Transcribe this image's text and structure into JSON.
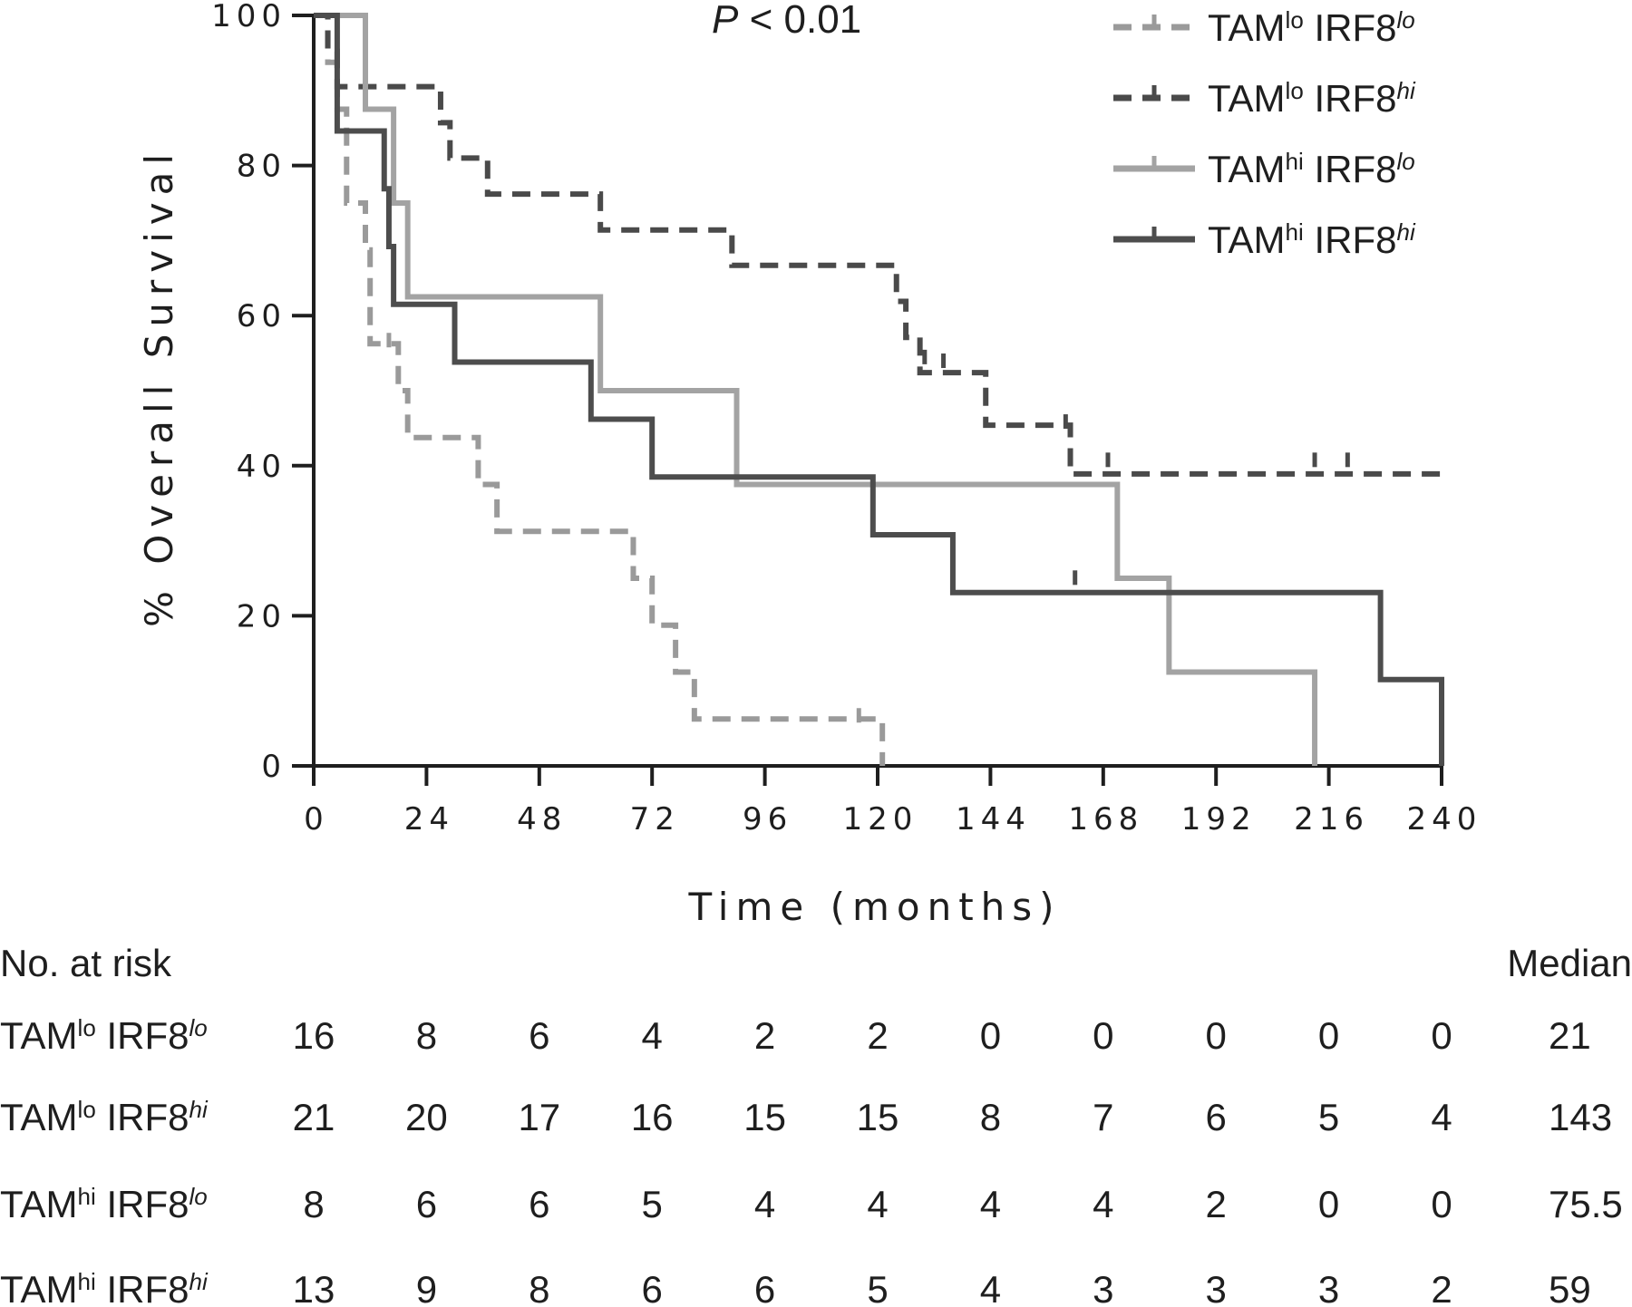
{
  "chart_data": {
    "type": "line",
    "subtype": "kaplan-meier",
    "annotation": "P < 0.01",
    "annotation_p": "P",
    "annotation_rest": " < 0.01",
    "xlabel": "Time (months)",
    "ylabel": "% Overall Survival",
    "xlim": [
      0,
      240
    ],
    "ylim": [
      0,
      100
    ],
    "xticks": [
      "0",
      "24",
      "48",
      "72",
      "96",
      "120",
      "144",
      "168",
      "192",
      "216",
      "240"
    ],
    "yticks": [
      "0",
      "20",
      "40",
      "60",
      "80",
      "100"
    ],
    "x_tick_values": [
      0,
      24,
      48,
      72,
      96,
      120,
      144,
      168,
      192,
      216,
      240
    ],
    "y_tick_values": [
      0,
      20,
      40,
      60,
      80,
      100
    ],
    "legend_position": "top-right",
    "series": [
      {
        "name": "TAMlo IRF8lo",
        "tam": "TAM",
        "tam_sup": "lo",
        "irf": " IRF8",
        "irf_sup": "lo",
        "color": "#9a9a9a",
        "dashed": true,
        "steps": [
          [
            0,
            100
          ],
          [
            3,
            93.75
          ],
          [
            5,
            87.5
          ],
          [
            7,
            75
          ],
          [
            11,
            68.75
          ],
          [
            12,
            56.25
          ],
          [
            18,
            50
          ],
          [
            20,
            43.75
          ],
          [
            35,
            37.5
          ],
          [
            39,
            31.25
          ],
          [
            68,
            25
          ],
          [
            72,
            18.75
          ],
          [
            77,
            12.5
          ],
          [
            81,
            6.25
          ],
          [
            121,
            0
          ]
        ],
        "censors": [
          [
            16,
            56.25
          ],
          [
            116,
            6.25
          ]
        ]
      },
      {
        "name": "TAMlo IRF8hi",
        "tam": "TAM",
        "tam_sup": "lo",
        "irf": " IRF8",
        "irf_sup": "hi",
        "color": "#4a4a4a",
        "dashed": true,
        "steps": [
          [
            0,
            100
          ],
          [
            3,
            95.2
          ],
          [
            5,
            90.5
          ],
          [
            27,
            85.7
          ],
          [
            29,
            81
          ],
          [
            37,
            76.2
          ],
          [
            61,
            71.4
          ],
          [
            89,
            66.7
          ],
          [
            124,
            61.9
          ],
          [
            126,
            57.1
          ],
          [
            129,
            52.4
          ],
          [
            143,
            45.4
          ],
          [
            161,
            38.9
          ],
          [
            240,
            38.9
          ]
        ],
        "censors": [
          [
            124,
            64
          ],
          [
            130,
            54
          ],
          [
            134,
            53.5
          ],
          [
            160,
            45.4
          ],
          [
            169,
            40.3
          ],
          [
            213,
            40.3
          ],
          [
            220,
            40.3
          ]
        ]
      },
      {
        "name": "TAMhi IRF8lo",
        "tam": "TAM",
        "tam_sup": "hi",
        "irf": " IRF8",
        "irf_sup": "lo",
        "color": "#a3a3a3",
        "dashed": false,
        "steps": [
          [
            0,
            100
          ],
          [
            11,
            87.5
          ],
          [
            17,
            75
          ],
          [
            20,
            62.5
          ],
          [
            61,
            50
          ],
          [
            90,
            37.5
          ],
          [
            171,
            25
          ],
          [
            182,
            12.5
          ],
          [
            213,
            0
          ]
        ],
        "censors": []
      },
      {
        "name": "TAMhi IRF8hi",
        "tam": "TAM",
        "tam_sup": "hi",
        "irf": " IRF8",
        "irf_sup": "hi",
        "color": "#4d4d4d",
        "dashed": false,
        "steps": [
          [
            0,
            100
          ],
          [
            5,
            84.6
          ],
          [
            15,
            76.9
          ],
          [
            16,
            69.2
          ],
          [
            17,
            61.5
          ],
          [
            30,
            53.8
          ],
          [
            59,
            46.2
          ],
          [
            72,
            38.5
          ],
          [
            119,
            30.8
          ],
          [
            136,
            23.1
          ],
          [
            227,
            11.5
          ],
          [
            240,
            0
          ]
        ],
        "censors": [
          [
            162,
            24.6
          ]
        ]
      }
    ],
    "risk_table": {
      "title": "No. at risk",
      "median_header": "Median",
      "rows": [
        {
          "tam": "TAM",
          "tam_sup": "lo",
          "irf": " IRF8",
          "irf_sup": "lo",
          "counts": [
            "16",
            "8",
            "6",
            "4",
            "2",
            "2",
            "0",
            "0",
            "0",
            "0",
            "0"
          ],
          "median": "21"
        },
        {
          "tam": "TAM",
          "tam_sup": "lo",
          "irf": " IRF8",
          "irf_sup": "hi",
          "counts": [
            "21",
            "20",
            "17",
            "16",
            "15",
            "15",
            "8",
            "7",
            "6",
            "5",
            "4"
          ],
          "median": "143"
        },
        {
          "tam": "TAM",
          "tam_sup": "hi",
          "irf": " IRF8",
          "irf_sup": "lo",
          "counts": [
            "8",
            "6",
            "6",
            "5",
            "4",
            "4",
            "4",
            "4",
            "2",
            "0",
            "0"
          ],
          "median": "75.5"
        },
        {
          "tam": "TAM",
          "tam_sup": "hi",
          "irf": " IRF8",
          "irf_sup": "hi",
          "counts": [
            "13",
            "9",
            "8",
            "6",
            "6",
            "5",
            "4",
            "3",
            "3",
            "3",
            "2"
          ],
          "median": "59"
        }
      ]
    }
  }
}
